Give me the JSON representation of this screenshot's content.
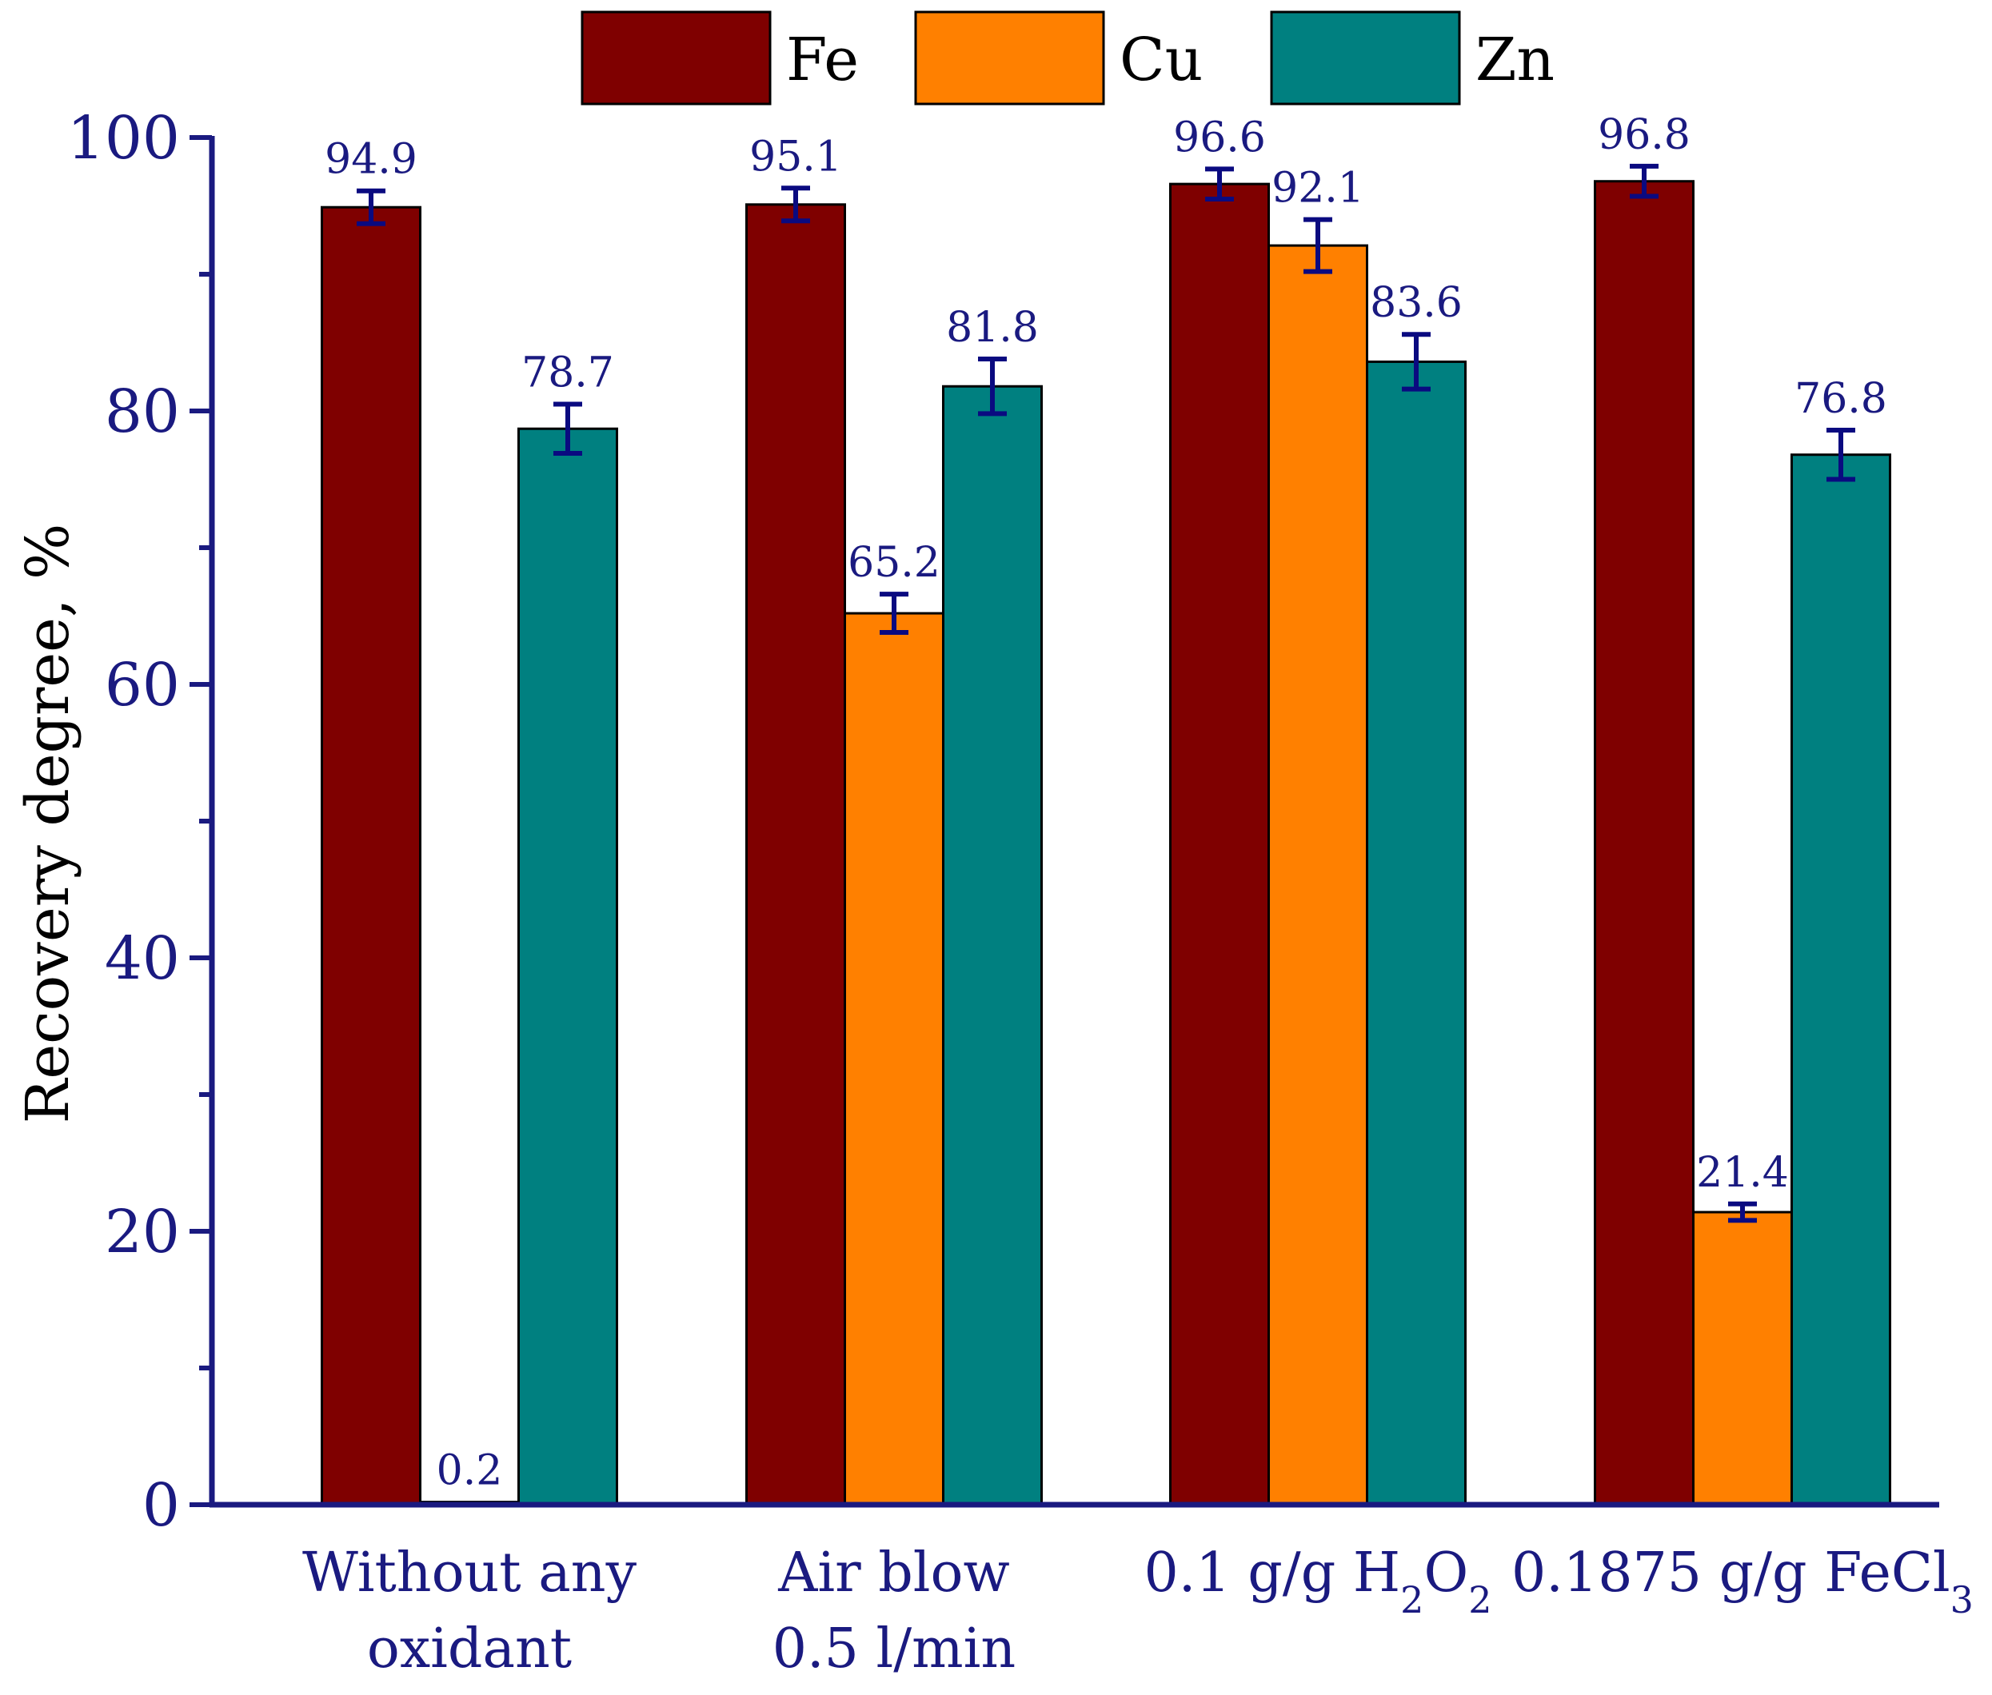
{
  "chart_data": {
    "type": "bar",
    "title": "",
    "xlabel": "",
    "ylabel": "Recovery degree, %",
    "ylim": [
      0,
      100
    ],
    "yticks": [
      0,
      20,
      40,
      60,
      80,
      100
    ],
    "tick_labels": [
      "0",
      "20",
      "40",
      "60",
      "80",
      "100"
    ],
    "grid": false,
    "legend_position": "top",
    "categories": [
      [
        "Without any",
        "oxidant"
      ],
      [
        "Air blow",
        "0.5 l/min"
      ],
      [
        "0.1 g/g H2O2"
      ],
      [
        "0.1875 g/g FeCl3"
      ]
    ],
    "series": [
      {
        "name": "Fe",
        "values": [
          94.9,
          95.1,
          96.6,
          96.8
        ],
        "errors": [
          1.2,
          1.2,
          1.1,
          1.1
        ],
        "labels": [
          "94.9",
          "95.1",
          "96.6",
          "96.8"
        ]
      },
      {
        "name": "Cu",
        "values": [
          0.2,
          65.2,
          92.1,
          21.4
        ],
        "errors": [
          0.0,
          1.4,
          1.9,
          0.6
        ],
        "labels": [
          "0.2",
          "65.2",
          "92.1",
          "21.4"
        ]
      },
      {
        "name": "Zn",
        "values": [
          78.7,
          81.8,
          83.6,
          76.8
        ],
        "errors": [
          1.8,
          2.0,
          2.0,
          1.8
        ],
        "labels": [
          "78.7",
          "81.8",
          "83.6",
          "76.8"
        ]
      }
    ],
    "colors": {
      "Fe": "#7f0000",
      "Cu": "#ff8000",
      "Zn": "#008080",
      "axis": "#1a1a80",
      "error_bar": "#0a0a80",
      "bar_edge": "#000000"
    }
  }
}
